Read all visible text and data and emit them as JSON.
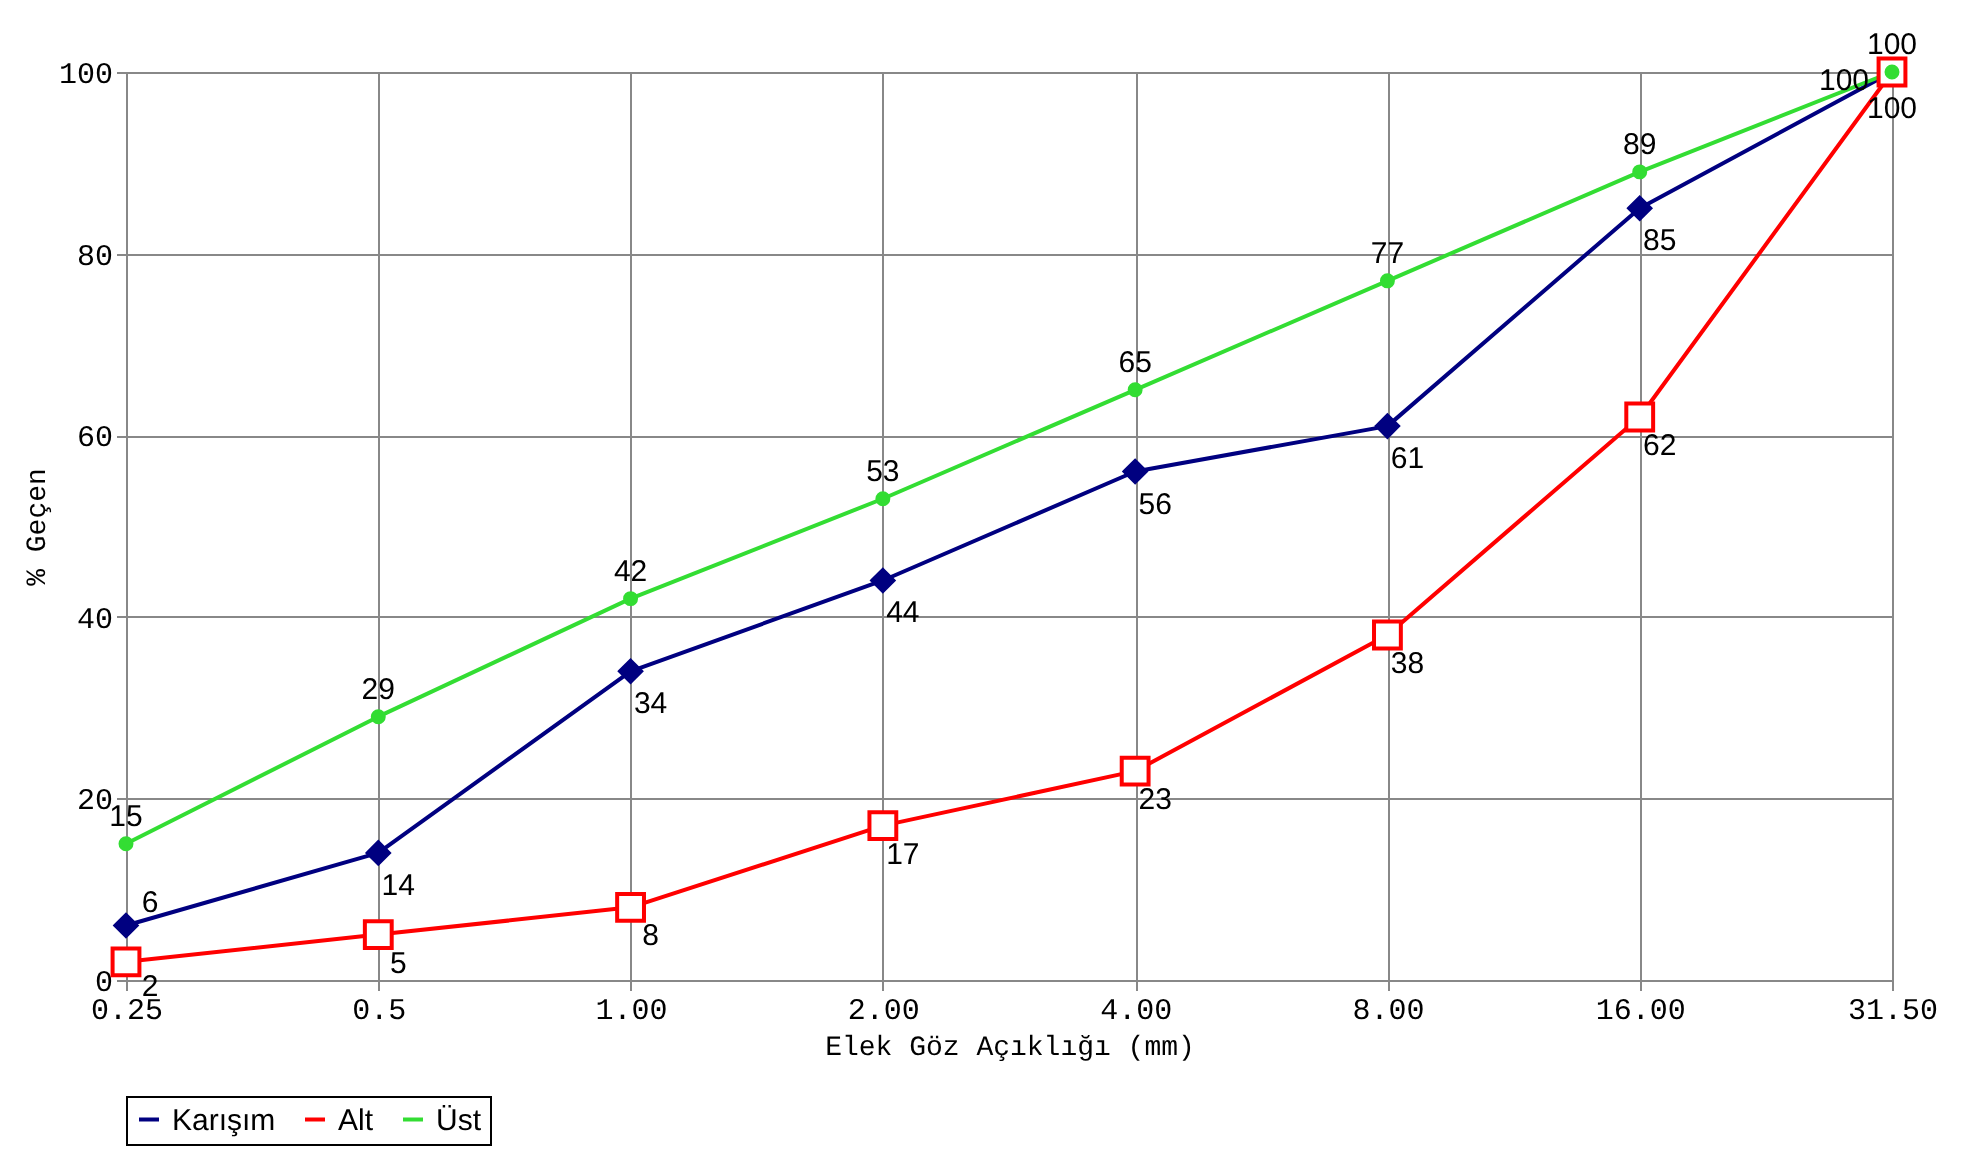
{
  "chart_data": {
    "type": "line",
    "xlabel": "Elek Göz Açıklığı (mm)",
    "ylabel": "% Geçen",
    "categories": [
      "0.25",
      "0.5",
      "1.00",
      "2.00",
      "4.00",
      "8.00",
      "16.00",
      "31.50"
    ],
    "series": [
      {
        "name": "Karışım",
        "color": "#000080",
        "marker": "diamond",
        "values": [
          6,
          14,
          34,
          44,
          56,
          61,
          85,
          100
        ]
      },
      {
        "name": "Alt",
        "color": "#ff0000",
        "marker": "square",
        "values": [
          2,
          5,
          8,
          17,
          23,
          38,
          62,
          100
        ]
      },
      {
        "name": "Üst",
        "color": "#33dd33",
        "marker": "circle",
        "values": [
          15,
          29,
          42,
          53,
          65,
          77,
          89,
          100
        ]
      }
    ],
    "ylim": [
      0,
      100
    ],
    "yticks": [
      0,
      20,
      40,
      60,
      80,
      100
    ],
    "grid": true,
    "legend": "bottom",
    "data_labels": true
  }
}
